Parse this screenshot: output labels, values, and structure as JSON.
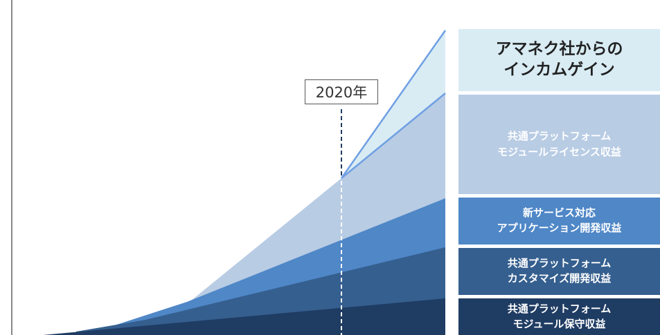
{
  "year_marker": {
    "label": "2020年"
  },
  "legend": {
    "income": [
      "アマネク社からの",
      "インカムゲイン"
    ],
    "license": [
      "共通プラットフォーム",
      "モジュールライセンス収益"
    ],
    "new_service": [
      "新サービス対応",
      "アプリケーション開発収益"
    ],
    "customize": [
      "共通プラットフォーム",
      "カスタマイズ開発収益"
    ],
    "maintenance": [
      "共通プラットフォーム",
      "モジュール保守収益"
    ]
  },
  "colors": {
    "income": "#d9ecf4",
    "license": "#b8cce4",
    "new_service": "#4f87c7",
    "customize": "#355f8f",
    "maintenance": "#1f3c63",
    "growth_line": "#6f9fe3",
    "axis": "#888888"
  }
}
